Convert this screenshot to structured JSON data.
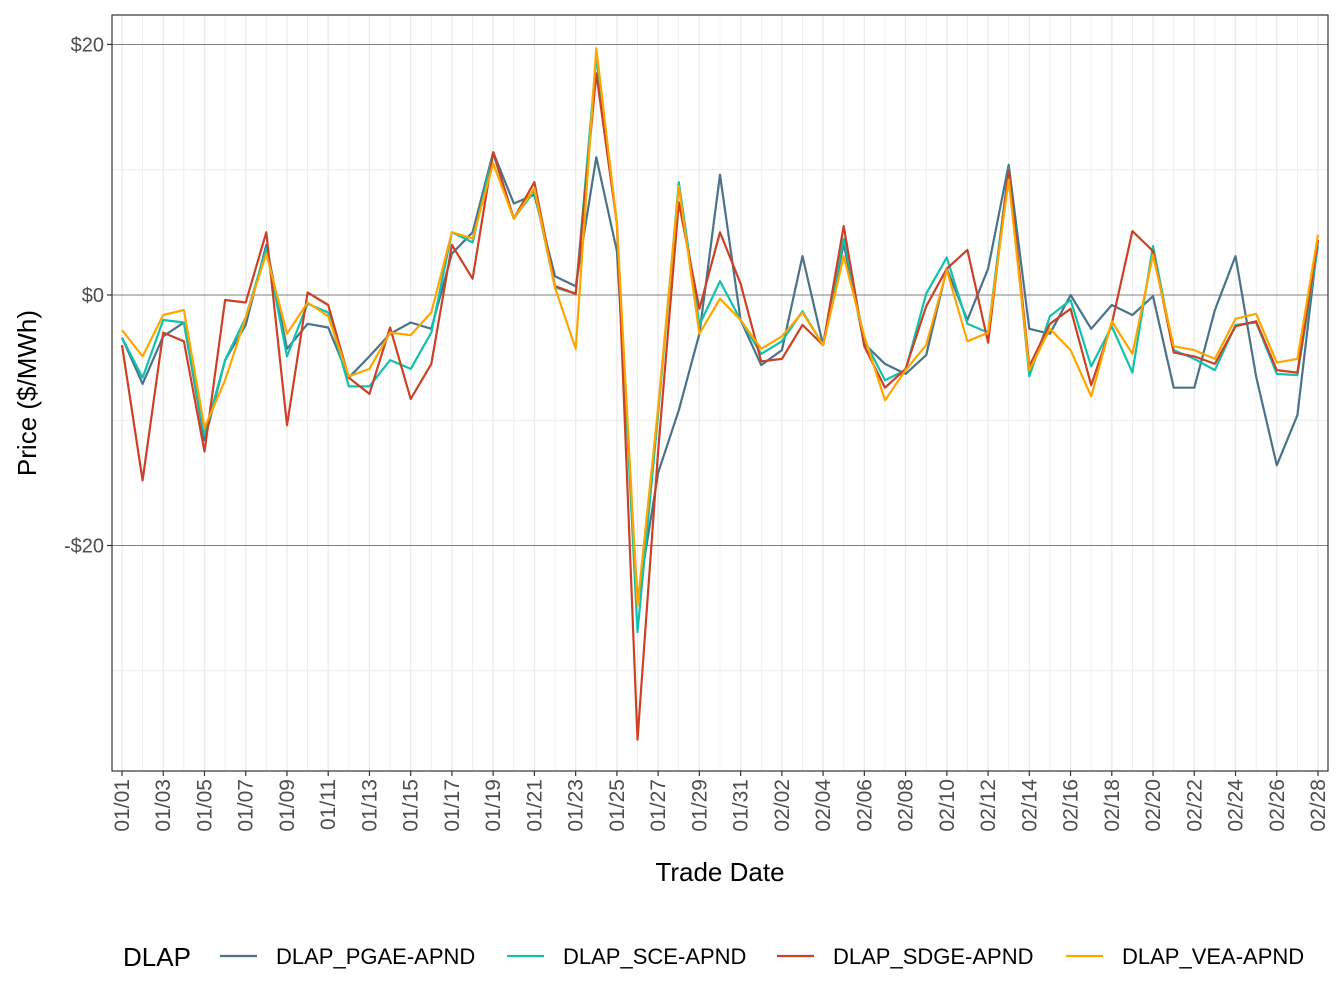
{
  "chart_data": {
    "type": "line",
    "title": "",
    "xlabel": "Trade Date",
    "ylabel": "Price ($/MWh)",
    "ylim": [
      -38,
      22.35
    ],
    "y_ticks": [
      20,
      0,
      -20
    ],
    "y_tick_labels": [
      "$20",
      "$0",
      "-$20"
    ],
    "x_tick_labels": [
      "01/01",
      "01/03",
      "01/05",
      "01/07",
      "01/09",
      "01/11",
      "01/13",
      "01/15",
      "01/17",
      "01/19",
      "01/21",
      "01/23",
      "01/25",
      "01/27",
      "01/29",
      "01/31",
      "02/02",
      "02/04",
      "02/06",
      "02/08",
      "02/10",
      "02/12",
      "02/14",
      "02/16",
      "02/18",
      "02/20",
      "02/22",
      "02/24",
      "02/26",
      "02/28"
    ],
    "grid": true,
    "legend": {
      "title": "DLAP",
      "position": "bottom"
    },
    "x": [
      "01/01",
      "01/02",
      "01/03",
      "01/04",
      "01/05",
      "01/06",
      "01/07",
      "01/08",
      "01/09",
      "01/10",
      "01/11",
      "01/12",
      "01/13",
      "01/14",
      "01/15",
      "01/16",
      "01/17",
      "01/18",
      "01/19",
      "01/20",
      "01/21",
      "01/22",
      "01/23",
      "01/24",
      "01/25",
      "01/26",
      "01/27",
      "01/28",
      "01/29",
      "01/30",
      "01/31",
      "02/01",
      "02/02",
      "02/03",
      "02/04",
      "02/05",
      "02/06",
      "02/07",
      "02/08",
      "02/09",
      "02/10",
      "02/11",
      "02/12",
      "02/13",
      "02/14",
      "02/15",
      "02/16",
      "02/17",
      "02/18",
      "02/19",
      "02/20",
      "02/21",
      "02/22",
      "02/23",
      "02/24",
      "02/25",
      "02/26",
      "02/27",
      "02/28"
    ],
    "series": [
      {
        "name": "DLAP_PGAE-APND",
        "color": "#4a7389",
        "values": [
          -3.4,
          -7.1,
          -3.3,
          -2.2,
          -11.6,
          -5.2,
          -2.4,
          4.0,
          -4.3,
          -2.3,
          -2.6,
          -6.6,
          -4.9,
          -3.1,
          -2.2,
          -2.7,
          3.3,
          5.0,
          11.4,
          7.3,
          8.0,
          1.5,
          0.7,
          11.0,
          3.5,
          -24.5,
          -14.2,
          -9.2,
          -3.1,
          9.6,
          -2.0,
          -5.6,
          -4.4,
          3.1,
          -4.0,
          4.1,
          -3.9,
          -5.5,
          -6.3,
          -4.8,
          2.1,
          -2.0,
          2.1,
          10.4,
          -2.7,
          -3.1,
          0.0,
          -2.7,
          -0.8,
          -1.6,
          -0.1,
          -7.4,
          -7.4,
          -1.2,
          3.1,
          -6.5,
          -13.6,
          -9.6,
          4.4
        ]
      },
      {
        "name": "DLAP_SCE-APND",
        "color": "#10c2ad",
        "values": [
          -3.4,
          -6.6,
          -2.0,
          -2.2,
          -11.2,
          -5.2,
          -1.8,
          3.7,
          -4.9,
          -0.7,
          -1.4,
          -7.3,
          -7.3,
          -5.2,
          -5.9,
          -3.0,
          5.0,
          4.2,
          11.3,
          6.1,
          8.3,
          0.6,
          0.1,
          19.0,
          5.7,
          -26.9,
          -9.5,
          9.0,
          -2.4,
          1.1,
          -2.0,
          -4.7,
          -3.7,
          -1.3,
          -4.0,
          4.5,
          -3.6,
          -6.8,
          -6.0,
          0.1,
          3.0,
          -2.3,
          -3.0,
          10.1,
          -6.5,
          -1.7,
          -0.4,
          -5.7,
          -2.5,
          -6.2,
          3.9,
          -4.4,
          -5.1,
          -6.0,
          -2.4,
          -2.2,
          -6.3,
          -6.4,
          3.9
        ]
      },
      {
        "name": "DLAP_SDGE-APND",
        "color": "#cc4125",
        "values": [
          -4.0,
          -14.8,
          -3.0,
          -3.7,
          -12.5,
          -0.4,
          -0.6,
          5.0,
          -10.4,
          0.2,
          -0.8,
          -6.6,
          -7.9,
          -2.6,
          -8.3,
          -5.5,
          4.0,
          1.3,
          11.4,
          6.1,
          9.0,
          0.7,
          0.1,
          17.7,
          5.7,
          -35.5,
          -12.5,
          7.4,
          -1.1,
          5.0,
          0.9,
          -5.3,
          -5.1,
          -2.4,
          -4.0,
          5.5,
          -4.1,
          -7.4,
          -5.9,
          -0.9,
          2.1,
          3.6,
          -3.8,
          10.0,
          -5.7,
          -2.3,
          -1.1,
          -7.2,
          -2.3,
          5.1,
          3.5,
          -4.6,
          -4.9,
          -5.5,
          -2.5,
          -2.1,
          -6.0,
          -6.2,
          4.4
        ]
      },
      {
        "name": "DLAP_VEA-APND",
        "color": "#ffa500",
        "values": [
          -2.8,
          -4.9,
          -1.6,
          -1.2,
          -10.6,
          -6.8,
          -1.8,
          3.3,
          -3.1,
          -0.6,
          -1.7,
          -6.5,
          -5.9,
          -3.0,
          -3.2,
          -1.4,
          5.0,
          4.5,
          10.5,
          6.1,
          8.5,
          0.6,
          -4.3,
          19.7,
          5.7,
          -24.8,
          -9.0,
          8.7,
          -3.1,
          -0.3,
          -2.0,
          -4.3,
          -3.3,
          -1.4,
          -4.0,
          3.1,
          -3.3,
          -8.4,
          -6.0,
          -4.0,
          2.0,
          -3.7,
          -3.0,
          9.2,
          -6.0,
          -2.7,
          -4.4,
          -8.1,
          -2.1,
          -4.7,
          3.2,
          -4.1,
          -4.4,
          -5.1,
          -1.9,
          -1.5,
          -5.4,
          -5.1,
          4.8
        ]
      }
    ]
  }
}
